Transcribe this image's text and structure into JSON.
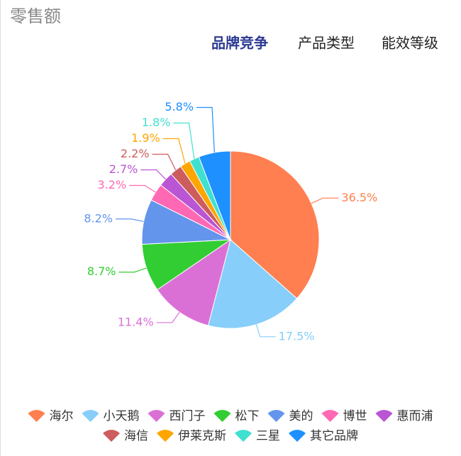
{
  "header": {
    "title": "零售额",
    "tabs": [
      "品牌竞争",
      "产品类型",
      "能效等级"
    ]
  },
  "chart_data": {
    "type": "pie",
    "categories": [
      "海尔",
      "小天鹅",
      "西门子",
      "松下",
      "美的",
      "博世",
      "惠而浦",
      "海信",
      "伊莱克斯",
      "三星",
      "其它品牌"
    ],
    "values": [
      36.5,
      17.5,
      11.4,
      8.7,
      8.2,
      3.2,
      2.7,
      2.2,
      1.9,
      1.8,
      5.8
    ],
    "value_labels": [
      "36.5%",
      "17.5%",
      "11.4%",
      "8.7%",
      "8.2%",
      "3.2%",
      "2.7%",
      "2.2%",
      "1.9%",
      "1.8%",
      "5.8%"
    ],
    "colors": [
      "#ff7f50",
      "#87cefa",
      "#da70d6",
      "#32cd32",
      "#6495ed",
      "#ff69b4",
      "#ba55d3",
      "#cd5c5c",
      "#ffa500",
      "#40e0d0",
      "#1e90ff"
    ],
    "legend": "bottom"
  }
}
